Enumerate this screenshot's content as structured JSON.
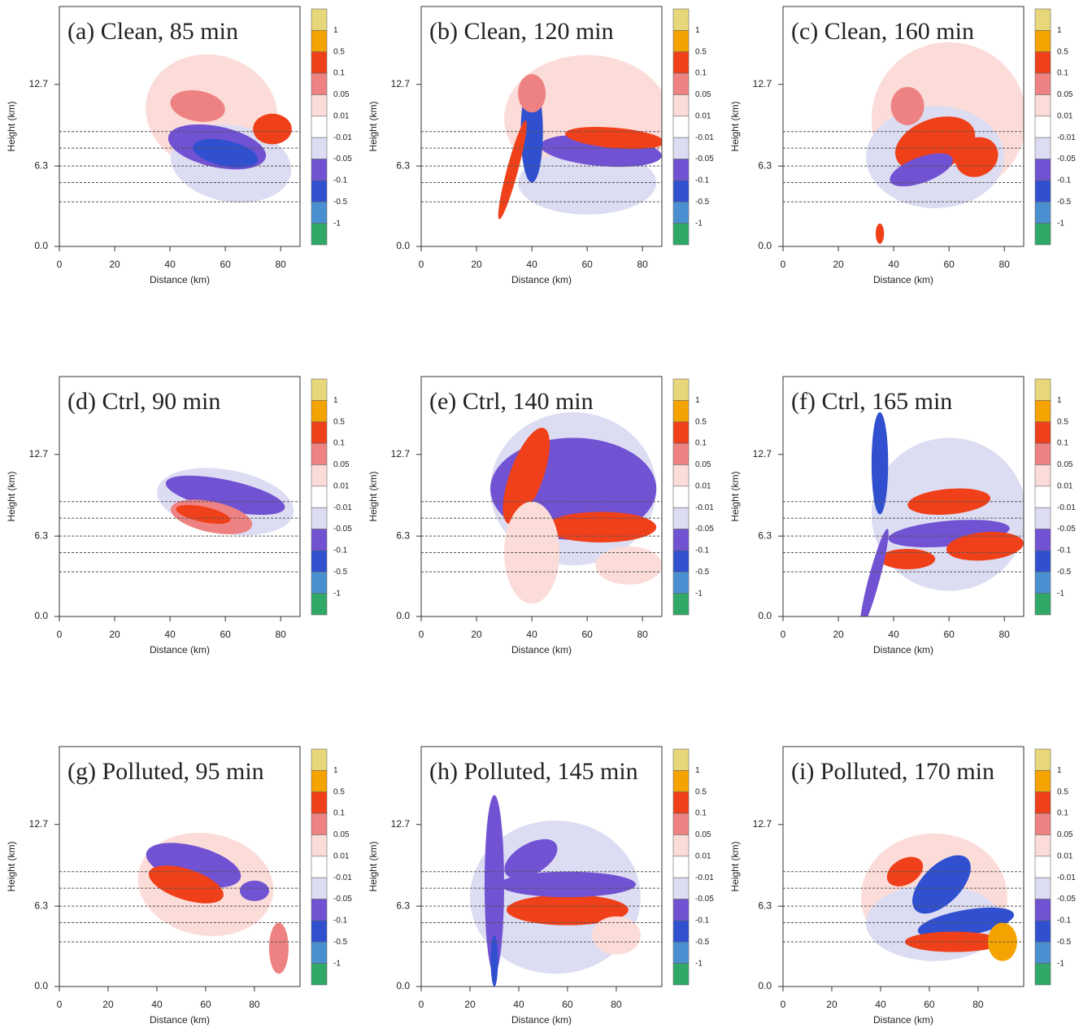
{
  "chart_data": [
    {
      "type": "contour",
      "title": "(a) Clean, 85 min",
      "xlabel": "Distance (km)",
      "ylabel": "Height (km)",
      "xlim": [
        0,
        87
      ],
      "xticks": [
        0,
        20,
        40,
        60,
        80
      ],
      "ylim": [
        0,
        18.8
      ],
      "yticks": [
        {
          "value": 0,
          "label": "0.0"
        },
        6.3,
        12.7
      ],
      "levels": [
        1,
        0.5,
        0.1,
        0.05,
        0.01,
        -0.01,
        -0.05,
        -0.1,
        -0.5,
        -1
      ],
      "colors": [
        "#e8d77a",
        "#f5a300",
        "#f0401a",
        "#ee8282",
        "#fbdcd8",
        "#ffffff",
        "#dcdcf2",
        "#7052d2",
        "#3050d0",
        "#4a90d0",
        "#30a868"
      ]
    },
    {
      "type": "contour",
      "title": "(b) Clean, 120 min",
      "xlabel": "Distance (km)",
      "ylabel": "Height (km)",
      "xlim": [
        0,
        87
      ],
      "xticks": [
        0,
        20,
        40,
        60,
        80
      ],
      "ylim": [
        0,
        18.8
      ],
      "yticks": [
        {
          "value": 0,
          "label": "0.0"
        },
        6.3,
        12.7
      ],
      "levels": [
        1,
        0.5,
        0.1,
        0.05,
        0.01,
        -0.01,
        -0.05,
        -0.1,
        -0.5,
        -1
      ],
      "colors": [
        "#e8d77a",
        "#f5a300",
        "#f0401a",
        "#ee8282",
        "#fbdcd8",
        "#ffffff",
        "#dcdcf2",
        "#7052d2",
        "#3050d0",
        "#4a90d0",
        "#30a868"
      ]
    },
    {
      "type": "contour",
      "title": "(c) Clean, 160 min",
      "xlabel": "Distance (km)",
      "ylabel": "Height (km)",
      "xlim": [
        0,
        87
      ],
      "xticks": [
        0,
        20,
        40,
        60,
        80
      ],
      "ylim": [
        0,
        18.8
      ],
      "yticks": [
        {
          "value": 0,
          "label": "0.0"
        },
        6.3,
        12.7
      ],
      "levels": [
        1,
        0.5,
        0.1,
        0.05,
        0.01,
        -0.01,
        -0.05,
        -0.1,
        -0.5,
        -1
      ],
      "colors": [
        "#e8d77a",
        "#f5a300",
        "#f0401a",
        "#ee8282",
        "#fbdcd8",
        "#ffffff",
        "#dcdcf2",
        "#7052d2",
        "#3050d0",
        "#4a90d0",
        "#30a868"
      ]
    },
    {
      "type": "contour",
      "title": "(d) Ctrl, 90 min",
      "xlabel": "Distance (km)",
      "ylabel": "Height (km)",
      "xlim": [
        0,
        87
      ],
      "xticks": [
        0,
        20,
        40,
        60,
        80
      ],
      "ylim": [
        0,
        18.8
      ],
      "yticks": [
        {
          "value": 0,
          "label": "0.0"
        },
        6.3,
        12.7
      ],
      "levels": [
        1,
        0.5,
        0.1,
        0.05,
        0.01,
        -0.01,
        -0.05,
        -0.1,
        -0.5,
        -1
      ],
      "colors": [
        "#e8d77a",
        "#f5a300",
        "#f0401a",
        "#ee8282",
        "#fbdcd8",
        "#ffffff",
        "#dcdcf2",
        "#7052d2",
        "#3050d0",
        "#4a90d0",
        "#30a868"
      ]
    },
    {
      "type": "contour",
      "title": "(e) Ctrl, 140 min",
      "xlabel": "Distance (km)",
      "ylabel": "Height (km)",
      "xlim": [
        0,
        87
      ],
      "xticks": [
        0,
        20,
        40,
        60,
        80
      ],
      "ylim": [
        0,
        18.8
      ],
      "yticks": [
        {
          "value": 0,
          "label": "0.0"
        },
        6.3,
        12.7
      ],
      "levels": [
        1,
        0.5,
        0.1,
        0.05,
        0.01,
        -0.01,
        -0.05,
        -0.1,
        -0.5,
        -1
      ],
      "colors": [
        "#e8d77a",
        "#f5a300",
        "#f0401a",
        "#ee8282",
        "#fbdcd8",
        "#ffffff",
        "#dcdcf2",
        "#7052d2",
        "#3050d0",
        "#4a90d0",
        "#30a868"
      ]
    },
    {
      "type": "contour",
      "title": "(f) Ctrl, 165 min",
      "xlabel": "Distance (km)",
      "ylabel": "Height (km)",
      "xlim": [
        0,
        87
      ],
      "xticks": [
        0,
        20,
        40,
        60,
        80
      ],
      "ylim": [
        0,
        18.8
      ],
      "yticks": [
        {
          "value": 0,
          "label": "0.0"
        },
        6.3,
        12.7
      ],
      "levels": [
        1,
        0.5,
        0.1,
        0.05,
        0.01,
        -0.01,
        -0.05,
        -0.1,
        -0.5,
        -1
      ],
      "colors": [
        "#e8d77a",
        "#f5a300",
        "#f0401a",
        "#ee8282",
        "#fbdcd8",
        "#ffffff",
        "#dcdcf2",
        "#7052d2",
        "#3050d0",
        "#4a90d0",
        "#30a868"
      ]
    },
    {
      "type": "contour",
      "title": "(g) Polluted, 95 min",
      "xlabel": "Distance (km)",
      "ylabel": "Height (km)",
      "xlim": [
        0,
        98.7
      ],
      "xticks": [
        0,
        20,
        40,
        60,
        80
      ],
      "ylim": [
        0,
        18.8
      ],
      "yticks": [
        {
          "value": 0,
          "label": "0.0"
        },
        6.3,
        12.7
      ],
      "levels": [
        1,
        0.5,
        0.1,
        0.05,
        0.01,
        -0.01,
        -0.05,
        -0.1,
        -0.5,
        -1
      ],
      "colors": [
        "#e8d77a",
        "#f5a300",
        "#f0401a",
        "#ee8282",
        "#fbdcd8",
        "#ffffff",
        "#dcdcf2",
        "#7052d2",
        "#3050d0",
        "#4a90d0",
        "#30a868"
      ]
    },
    {
      "type": "contour",
      "title": "(h) Polluted, 145 min",
      "xlabel": "Distance (km)",
      "ylabel": "Height (km)",
      "xlim": [
        0,
        98.7
      ],
      "xticks": [
        0,
        20,
        40,
        60,
        80
      ],
      "ylim": [
        0,
        18.8
      ],
      "yticks": [
        {
          "value": 0,
          "label": "0.0"
        },
        6.3,
        12.7
      ],
      "levels": [
        1,
        0.5,
        0.1,
        0.05,
        0.01,
        -0.01,
        -0.05,
        -0.1,
        -0.5,
        -1
      ],
      "colors": [
        "#e8d77a",
        "#f5a300",
        "#f0401a",
        "#ee8282",
        "#fbdcd8",
        "#ffffff",
        "#dcdcf2",
        "#7052d2",
        "#3050d0",
        "#4a90d0",
        "#30a868"
      ]
    },
    {
      "type": "contour",
      "title": "(i) Polluted, 170 min",
      "xlabel": "Distance (km)",
      "ylabel": "Height (km)",
      "xlim": [
        0,
        98.7
      ],
      "xticks": [
        0,
        20,
        40,
        60,
        80
      ],
      "ylim": [
        0,
        18.8
      ],
      "yticks": [
        {
          "value": 0,
          "label": "0.0"
        },
        6.3,
        12.7
      ],
      "levels": [
        1,
        0.5,
        0.1,
        0.05,
        0.01,
        -0.01,
        -0.05,
        -0.1,
        -0.5,
        -1
      ],
      "colors": [
        "#e8d77a",
        "#f5a300",
        "#f0401a",
        "#ee8282",
        "#fbdcd8",
        "#ffffff",
        "#dcdcf2",
        "#7052d2",
        "#3050d0",
        "#4a90d0",
        "#30a868"
      ]
    }
  ]
}
